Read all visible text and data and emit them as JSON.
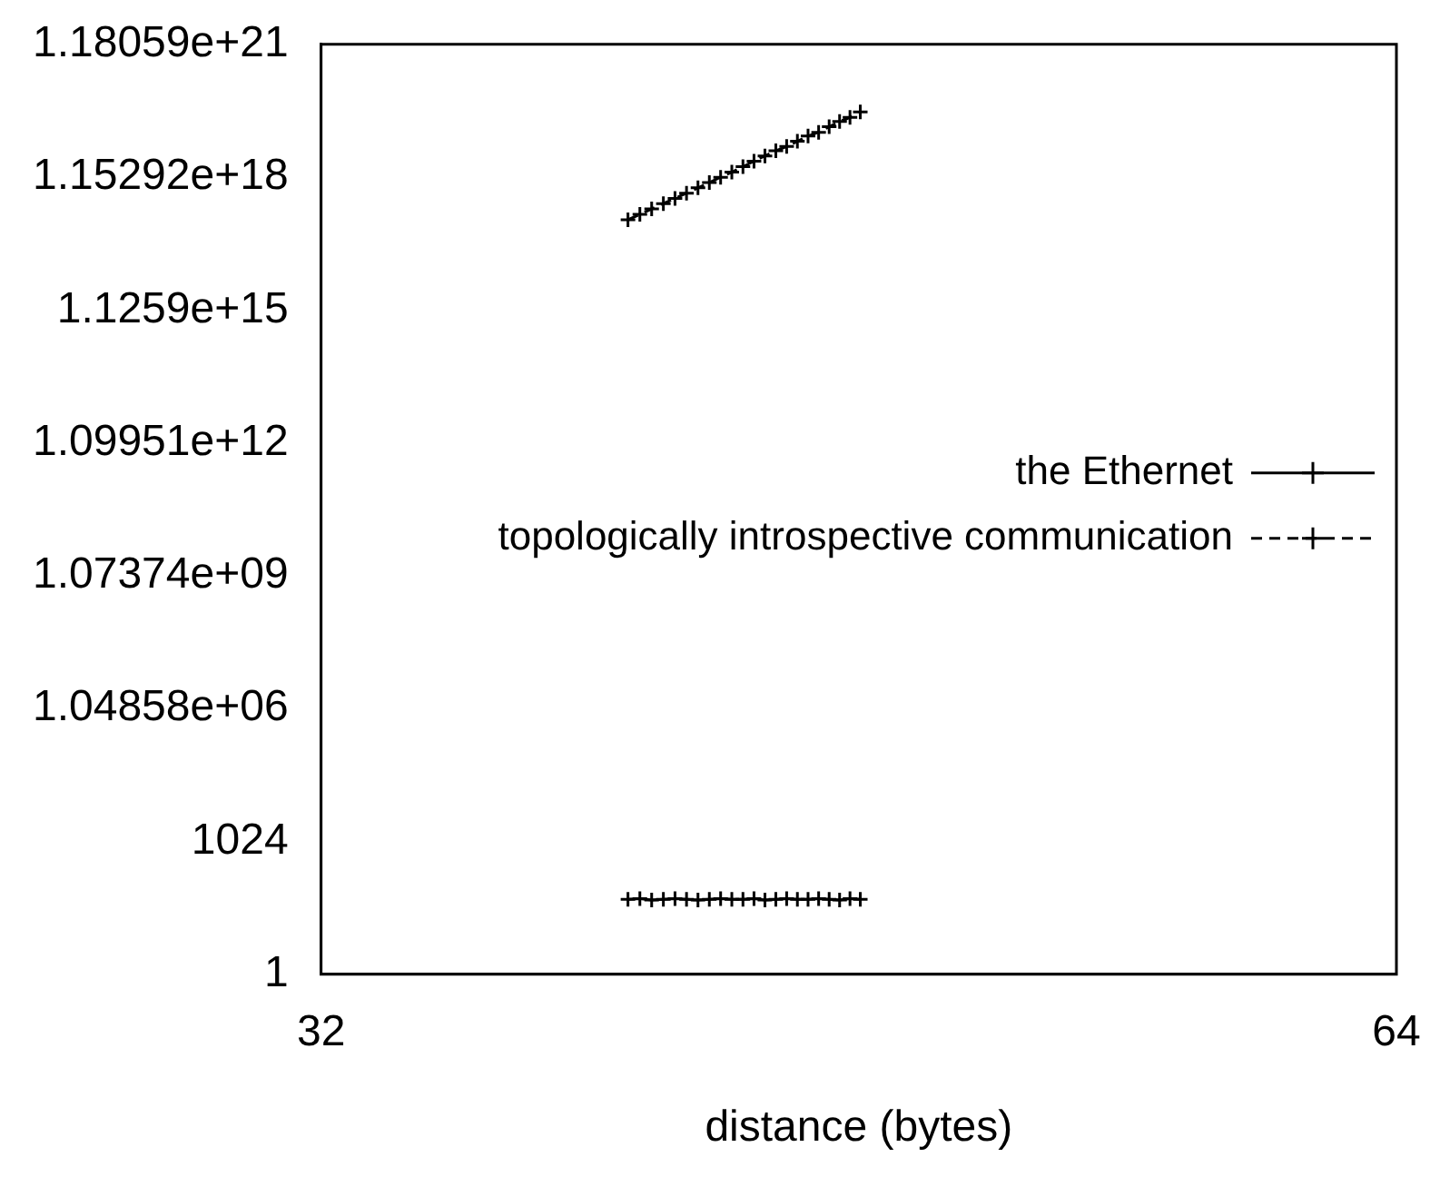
{
  "chart_data": {
    "type": "line",
    "xlabel": "distance (bytes)",
    "log": "xy",
    "xlim": [
      32,
      64
    ],
    "xticks": [
      32,
      64
    ],
    "ylim": [
      1,
      1.1805916207174113e+21
    ],
    "yticks": [
      1,
      1024,
      {
        "value": 1048576,
        "label": "1.04858e+06"
      },
      {
        "value": 1073741824,
        "label": "1.07374e+09"
      },
      {
        "value": 1099511627776,
        "label": "1.09951e+12"
      },
      {
        "value": 1125899906842624,
        "label": "1.1259e+15"
      },
      {
        "value": 1.152921504606847e+18,
        "label": "1.15292e+18"
      },
      {
        "value": 1.1805916207174113e+21,
        "label": "1.18059e+21"
      }
    ],
    "x": [
      39.0,
      39.3,
      39.6,
      39.9,
      40.2,
      40.5,
      40.8,
      41.1,
      41.4,
      41.7,
      42.0,
      42.3,
      42.6,
      42.9,
      43.2,
      43.5,
      43.8,
      44.1,
      44.4,
      44.7,
      45.0,
      45.3
    ],
    "series": [
      {
        "name": "the Ethernet",
        "color": "#000000",
        "marker": "cross",
        "line_style": "solid",
        "values": [
          50,
          52,
          48,
          50,
          52,
          50,
          48,
          50,
          52,
          50,
          50,
          52,
          48,
          50,
          52,
          50,
          50,
          52,
          50,
          48,
          52,
          50
        ]
      },
      {
        "name": "topologically introspective communication",
        "color": "#000000",
        "marker": "cross",
        "line_style": "dashed",
        "values": [
          1.25e+17,
          1.65e+17,
          2.2e+17,
          2.9e+17,
          3.8e+17,
          5e+17,
          6.6e+17,
          8.7e+17,
          1.15e+18,
          1.5e+18,
          2e+18,
          2.65e+18,
          3.5e+18,
          4.6e+18,
          5.7e+18,
          7.5e+18,
          9.9e+18,
          1.2e+19,
          1.6e+19,
          2.1e+19,
          2.6e+19,
          3.45e+19
        ]
      }
    ],
    "grid": false,
    "legend": "right"
  }
}
